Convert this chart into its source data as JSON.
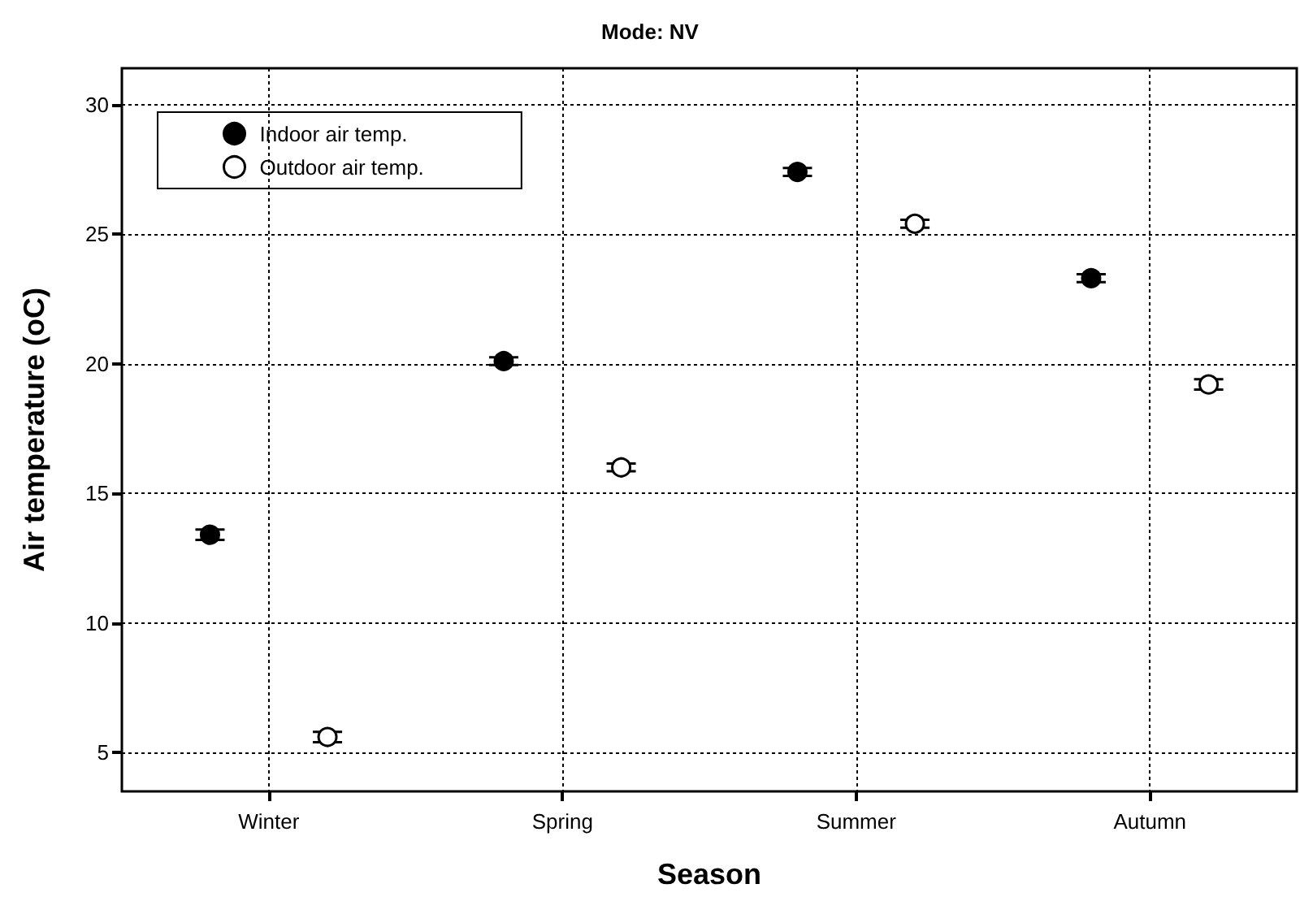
{
  "chart_data": {
    "type": "scatter",
    "title": "Mode: NV",
    "xlabel": "Season",
    "ylabel": "Air temperature (oC)",
    "categories": [
      "Winter",
      "Spring",
      "Summer",
      "Autumn"
    ],
    "series": [
      {
        "name": "Indoor air temp.",
        "color": "#000000",
        "values": [
          13.4,
          20.1,
          27.4,
          23.3
        ],
        "errors": [
          0.2,
          0.15,
          0.15,
          0.15
        ]
      },
      {
        "name": "Outdoor air temp.",
        "color": "#ffffff",
        "values": [
          5.6,
          16.0,
          25.4,
          19.2
        ],
        "errors": [
          0.2,
          0.15,
          0.15,
          0.2
        ]
      }
    ],
    "ylim": [
      3.5,
      31.4
    ],
    "yticks": [
      5,
      10,
      15,
      20,
      25,
      30
    ],
    "grid": true,
    "legend": "top left",
    "marker": "circle"
  }
}
